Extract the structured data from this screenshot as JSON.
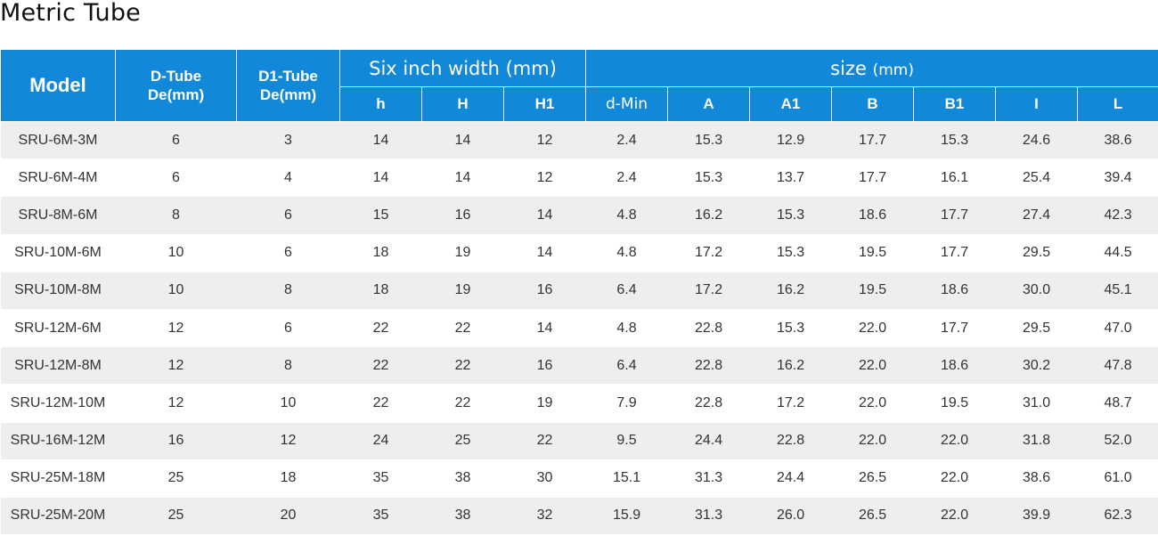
{
  "title": "Metric Tube",
  "headers": {
    "model": "Model",
    "d_tube_line1": "D-Tube",
    "d_tube_line2": "De(mm)",
    "d1_tube_line1": "D1-Tube",
    "d1_tube_line2": "De(mm)",
    "six_inch_group": "Six inch width (mm)",
    "size_group": "size",
    "size_group_unit": "(mm)",
    "sub": [
      "h",
      "H",
      "H1",
      "d-Min",
      "A",
      "A1",
      "B",
      "B1",
      "I",
      "L"
    ]
  },
  "colors": {
    "header_bg": "#1288d8",
    "header_text": "#ffffff",
    "row_stripe": "#eeeeef",
    "row_plain": "#ffffff",
    "body_text": "#333333"
  },
  "rows": [
    [
      "SRU-6M-3M",
      "6",
      "3",
      "14",
      "14",
      "12",
      "2.4",
      "15.3",
      "12.9",
      "17.7",
      "15.3",
      "24.6",
      "38.6"
    ],
    [
      "SRU-6M-4M",
      "6",
      "4",
      "14",
      "14",
      "12",
      "2.4",
      "15.3",
      "13.7",
      "17.7",
      "16.1",
      "25.4",
      "39.4"
    ],
    [
      "SRU-8M-6M",
      "8",
      "6",
      "15",
      "16",
      "14",
      "4.8",
      "16.2",
      "15.3",
      "18.6",
      "17.7",
      "27.4",
      "42.3"
    ],
    [
      "SRU-10M-6M",
      "10",
      "6",
      "18",
      "19",
      "14",
      "4.8",
      "17.2",
      "15.3",
      "19.5",
      "17.7",
      "29.5",
      "44.5"
    ],
    [
      "SRU-10M-8M",
      "10",
      "8",
      "18",
      "19",
      "16",
      "6.4",
      "17.2",
      "16.2",
      "19.5",
      "18.6",
      "30.0",
      "45.1"
    ],
    [
      "SRU-12M-6M",
      "12",
      "6",
      "22",
      "22",
      "14",
      "4.8",
      "22.8",
      "15.3",
      "22.0",
      "17.7",
      "29.5",
      "47.0"
    ],
    [
      "SRU-12M-8M",
      "12",
      "8",
      "22",
      "22",
      "16",
      "6.4",
      "22.8",
      "16.2",
      "22.0",
      "18.6",
      "30.2",
      "47.8"
    ],
    [
      "SRU-12M-10M",
      "12",
      "10",
      "22",
      "22",
      "19",
      "7.9",
      "22.8",
      "17.2",
      "22.0",
      "19.5",
      "31.0",
      "48.7"
    ],
    [
      "SRU-16M-12M",
      "16",
      "12",
      "24",
      "25",
      "22",
      "9.5",
      "24.4",
      "22.8",
      "22.0",
      "22.0",
      "31.8",
      "52.0"
    ],
    [
      "SRU-25M-18M",
      "25",
      "18",
      "35",
      "38",
      "30",
      "15.1",
      "31.3",
      "24.4",
      "26.5",
      "22.0",
      "38.6",
      "61.0"
    ],
    [
      "SRU-25M-20M",
      "25",
      "20",
      "35",
      "38",
      "32",
      "15.9",
      "31.3",
      "26.0",
      "26.5",
      "22.0",
      "39.9",
      "62.3"
    ]
  ]
}
